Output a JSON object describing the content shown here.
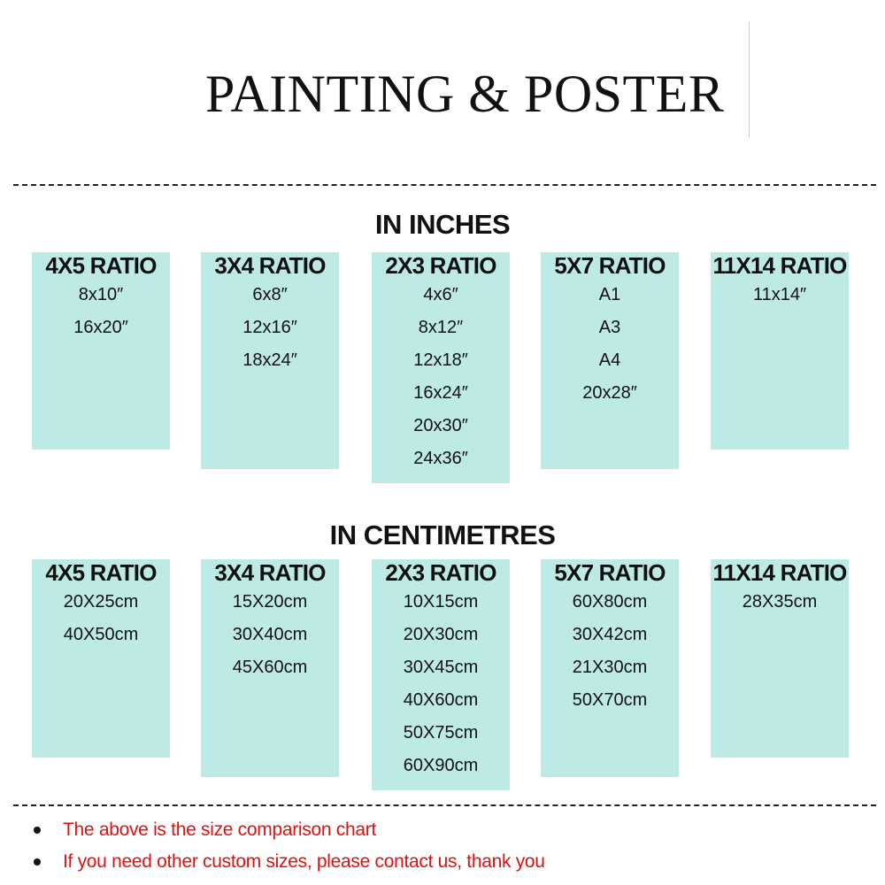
{
  "title": "PAINTING & POSTER",
  "inches": {
    "heading": "IN INCHES",
    "columns": [
      {
        "ratio": "4X5 RATIO",
        "sizes": [
          "8x10″",
          "16x20″"
        ]
      },
      {
        "ratio": "3X4 RATIO",
        "sizes": [
          "6x8″",
          "12x16″",
          "18x24″"
        ]
      },
      {
        "ratio": "2X3 RATIO",
        "sizes": [
          "4x6″",
          "8x12″",
          "12x18″",
          "16x24″",
          "20x30″",
          "24x36″"
        ]
      },
      {
        "ratio": "5X7 RATIO",
        "sizes": [
          "A1",
          "A3",
          "A4",
          "20x28″"
        ]
      },
      {
        "ratio": "11X14 RATIO",
        "sizes": [
          "11x14″"
        ]
      }
    ]
  },
  "centimetres": {
    "heading": "IN CENTIMETRES",
    "columns": [
      {
        "ratio": "4X5 RATIO",
        "sizes": [
          "20X25cm",
          "40X50cm"
        ]
      },
      {
        "ratio": "3X4 RATIO",
        "sizes": [
          "15X20cm",
          "30X40cm",
          "45X60cm"
        ]
      },
      {
        "ratio": "2X3 RATIO",
        "sizes": [
          "10X15cm",
          "20X30cm",
          "30X45cm",
          "40X60cm",
          "50X75cm",
          "60X90cm"
        ]
      },
      {
        "ratio": "5X7 RATIO",
        "sizes": [
          "60X80cm",
          "30X42cm",
          "21X30cm",
          "50X70cm"
        ]
      },
      {
        "ratio": "11X14 RATIO",
        "sizes": [
          "28X35cm"
        ]
      }
    ]
  },
  "notes": [
    "The above is the size comparison chart",
    "If you need other custom sizes, please contact us, thank you"
  ],
  "colors": {
    "box": "#bdeae5",
    "note_text": "#e01010"
  }
}
